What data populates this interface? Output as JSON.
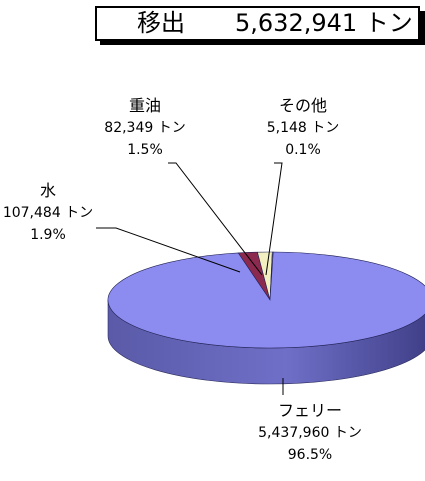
{
  "header": {
    "label": "移出",
    "total": "5,632,941 トン"
  },
  "colors": {
    "ferry": "#8c8cf0",
    "water": "#8b2a4e",
    "heavy_oil": "#f2f0c0",
    "other": "#d8d8f8"
  },
  "chart_data": {
    "type": "pie",
    "title": "",
    "slices": [
      {
        "name": "フェリー",
        "value": 5437960,
        "value_label": "5,437,960 トン",
        "percent_label": "96.5%"
      },
      {
        "name": "水",
        "value": 107484,
        "value_label": "107,484 トン",
        "percent_label": "1.9%"
      },
      {
        "name": "重油",
        "value": 82349,
        "value_label": "82,349 トン",
        "percent_label": "1.5%"
      },
      {
        "name": "その他",
        "value": 5148,
        "value_label": "5,148 トン",
        "percent_label": "0.1%"
      }
    ]
  }
}
